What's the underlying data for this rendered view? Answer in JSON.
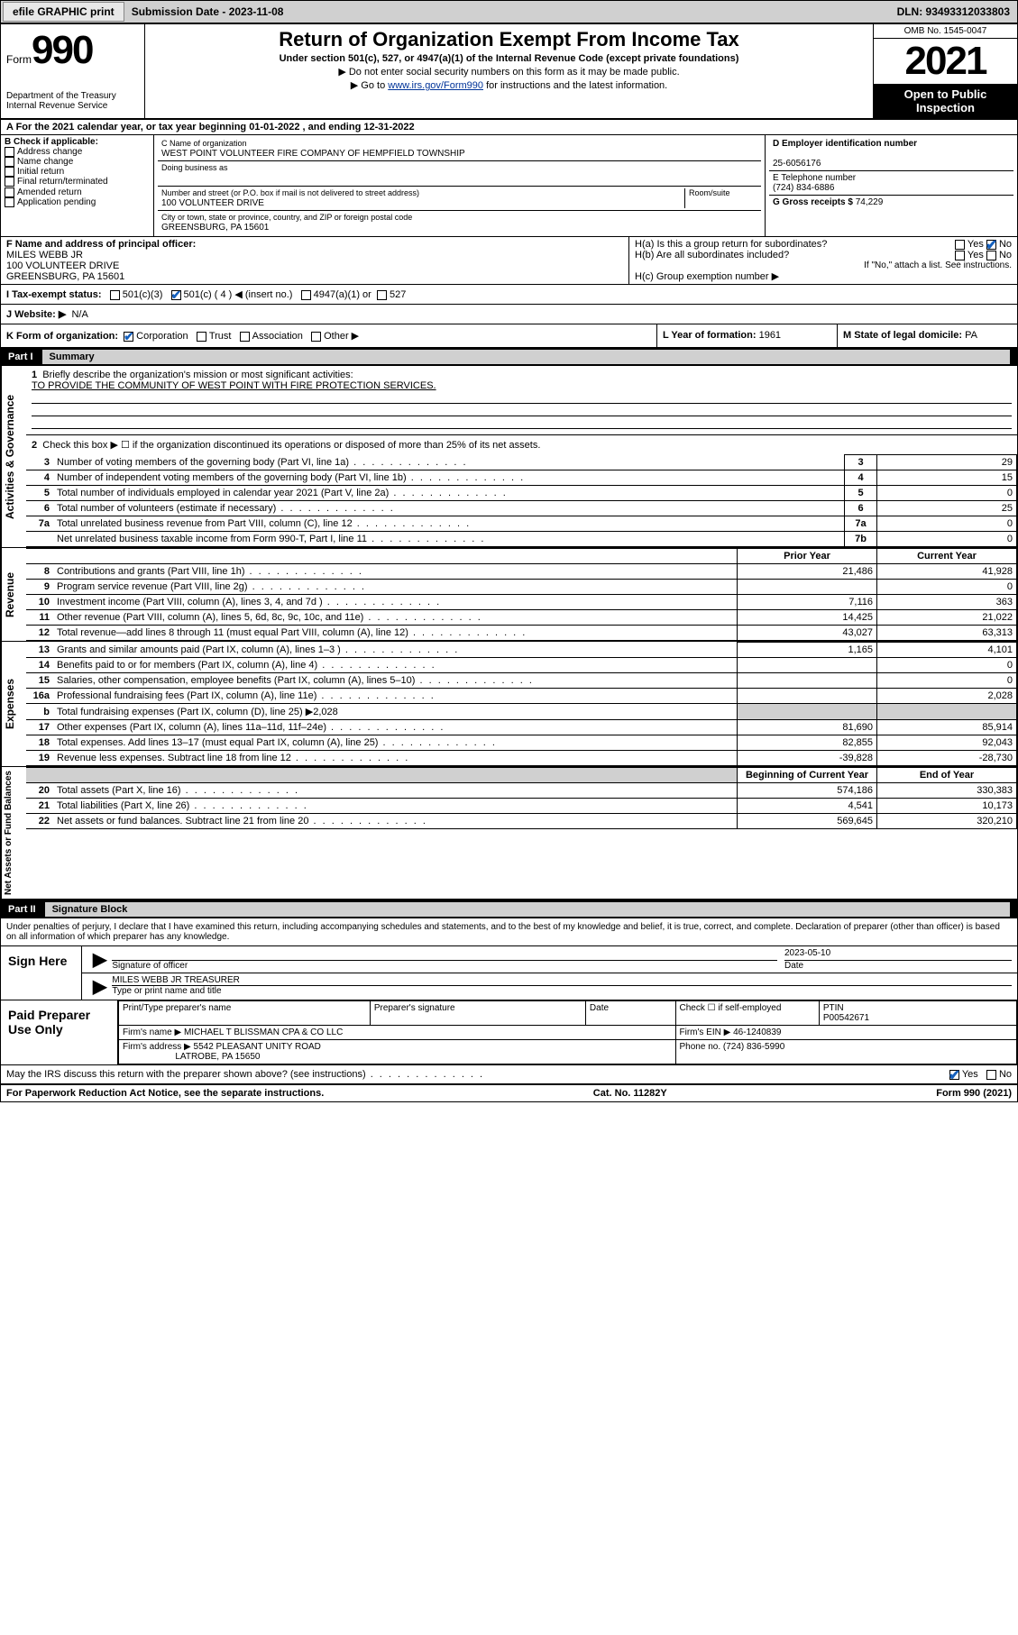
{
  "topbar": {
    "efile_label": "efile GRAPHIC print",
    "submission_label": "Submission Date - 2023-11-08",
    "dln_label": "DLN: 93493312033803"
  },
  "header": {
    "form_word": "Form",
    "form_num": "990",
    "dept": "Department of the Treasury\nInternal Revenue Service",
    "title": "Return of Organization Exempt From Income Tax",
    "sub1": "Under section 501(c), 527, or 4947(a)(1) of the Internal Revenue Code (except private foundations)",
    "sub2": "▶ Do not enter social security numbers on this form as it may be made public.",
    "sub3_pre": "▶ Go to ",
    "sub3_link": "www.irs.gov/Form990",
    "sub3_post": " for instructions and the latest information.",
    "omb": "OMB No. 1545-0047",
    "year": "2021",
    "open": "Open to Public Inspection"
  },
  "rowA": "A For the 2021 calendar year, or tax year beginning 01-01-2022   , and ending 12-31-2022",
  "boxB": {
    "title": "B Check if applicable:",
    "items": [
      "Address change",
      "Name change",
      "Initial return",
      "Final return/terminated",
      "Amended return",
      "Application pending"
    ]
  },
  "boxC": {
    "name_lbl": "C Name of organization",
    "name": "WEST POINT VOLUNTEER FIRE COMPANY OF HEMPFIELD TOWNSHIP",
    "dba_lbl": "Doing business as",
    "addr_lbl": "Number and street (or P.O. box if mail is not delivered to street address)",
    "room_lbl": "Room/suite",
    "addr": "100 VOLUNTEER DRIVE",
    "city_lbl": "City or town, state or province, country, and ZIP or foreign postal code",
    "city": "GREENSBURG, PA  15601"
  },
  "boxD": {
    "lbl": "D Employer identification number",
    "val": "25-6056176"
  },
  "boxE": {
    "lbl": "E Telephone number",
    "val": "(724) 834-6886"
  },
  "boxG": {
    "lbl": "G Gross receipts $",
    "val": "74,229"
  },
  "boxF": {
    "lbl": "F Name and address of principal officer:",
    "name": "MILES WEBB JR",
    "addr1": "100 VOLUNTEER DRIVE",
    "addr2": "GREENSBURG, PA  15601"
  },
  "boxH": {
    "a": "H(a)  Is this a group return for subordinates?",
    "b": "H(b)  Are all subordinates included?",
    "b_note": "If \"No,\" attach a list. See instructions.",
    "c": "H(c)  Group exemption number ▶",
    "yes": "Yes",
    "no": "No"
  },
  "rowI": {
    "lbl": "I   Tax-exempt status:",
    "o1": "501(c)(3)",
    "o2": "501(c) ( 4 ) ◀ (insert no.)",
    "o3": "4947(a)(1) or",
    "o4": "527"
  },
  "rowJ": {
    "lbl": "J   Website: ▶",
    "val": "N/A"
  },
  "rowK": {
    "lbl": "K Form of organization:",
    "o1": "Corporation",
    "o2": "Trust",
    "o3": "Association",
    "o4": "Other ▶"
  },
  "rowL": {
    "lbl": "L Year of formation:",
    "val": "1961"
  },
  "rowM": {
    "lbl": "M State of legal domicile:",
    "val": "PA"
  },
  "part1": {
    "name": "Part I",
    "title": "Summary",
    "side_gov": "Activities & Governance",
    "side_rev": "Revenue",
    "side_exp": "Expenses",
    "side_net": "Net Assets or Fund Balances",
    "l1_lbl": "Briefly describe the organization's mission or most significant activities:",
    "l1_val": "TO PROVIDE THE COMMUNITY OF WEST POINT WITH FIRE PROTECTION SERVICES.",
    "l2": "Check this box ▶ ☐  if the organization discontinued its operations or disposed of more than 25% of its net assets.",
    "rows_gov": [
      {
        "n": "3",
        "t": "Number of voting members of the governing body (Part VI, line 1a)",
        "box": "3",
        "v": "29"
      },
      {
        "n": "4",
        "t": "Number of independent voting members of the governing body (Part VI, line 1b)",
        "box": "4",
        "v": "15"
      },
      {
        "n": "5",
        "t": "Total number of individuals employed in calendar year 2021 (Part V, line 2a)",
        "box": "5",
        "v": "0"
      },
      {
        "n": "6",
        "t": "Total number of volunteers (estimate if necessary)",
        "box": "6",
        "v": "25"
      },
      {
        "n": "7a",
        "t": "Total unrelated business revenue from Part VIII, column (C), line 12",
        "box": "7a",
        "v": "0"
      },
      {
        "n": "",
        "t": "Net unrelated business taxable income from Form 990-T, Part I, line 11",
        "box": "7b",
        "v": "0"
      }
    ],
    "col_prior": "Prior Year",
    "col_curr": "Current Year",
    "rows_rev": [
      {
        "n": "8",
        "t": "Contributions and grants (Part VIII, line 1h)",
        "p": "21,486",
        "c": "41,928"
      },
      {
        "n": "9",
        "t": "Program service revenue (Part VIII, line 2g)",
        "p": "",
        "c": "0"
      },
      {
        "n": "10",
        "t": "Investment income (Part VIII, column (A), lines 3, 4, and 7d )",
        "p": "7,116",
        "c": "363"
      },
      {
        "n": "11",
        "t": "Other revenue (Part VIII, column (A), lines 5, 6d, 8c, 9c, 10c, and 11e)",
        "p": "14,425",
        "c": "21,022"
      },
      {
        "n": "12",
        "t": "Total revenue—add lines 8 through 11 (must equal Part VIII, column (A), line 12)",
        "p": "43,027",
        "c": "63,313"
      }
    ],
    "rows_exp": [
      {
        "n": "13",
        "t": "Grants and similar amounts paid (Part IX, column (A), lines 1–3 )",
        "p": "1,165",
        "c": "4,101"
      },
      {
        "n": "14",
        "t": "Benefits paid to or for members (Part IX, column (A), line 4)",
        "p": "",
        "c": "0"
      },
      {
        "n": "15",
        "t": "Salaries, other compensation, employee benefits (Part IX, column (A), lines 5–10)",
        "p": "",
        "c": "0"
      },
      {
        "n": "16a",
        "t": "Professional fundraising fees (Part IX, column (A), line 11e)",
        "p": "",
        "c": "2,028"
      }
    ],
    "l16b": "Total fundraising expenses (Part IX, column (D), line 25) ▶2,028",
    "rows_exp2": [
      {
        "n": "17",
        "t": "Other expenses (Part IX, column (A), lines 11a–11d, 11f–24e)",
        "p": "81,690",
        "c": "85,914"
      },
      {
        "n": "18",
        "t": "Total expenses. Add lines 13–17 (must equal Part IX, column (A), line 25)",
        "p": "82,855",
        "c": "92,043"
      },
      {
        "n": "19",
        "t": "Revenue less expenses. Subtract line 18 from line 12",
        "p": "-39,828",
        "c": "-28,730"
      }
    ],
    "col_beg": "Beginning of Current Year",
    "col_end": "End of Year",
    "rows_net": [
      {
        "n": "20",
        "t": "Total assets (Part X, line 16)",
        "p": "574,186",
        "c": "330,383"
      },
      {
        "n": "21",
        "t": "Total liabilities (Part X, line 26)",
        "p": "4,541",
        "c": "10,173"
      },
      {
        "n": "22",
        "t": "Net assets or fund balances. Subtract line 21 from line 20",
        "p": "569,645",
        "c": "320,210"
      }
    ]
  },
  "part2": {
    "name": "Part II",
    "title": "Signature Block",
    "decl": "Under penalties of perjury, I declare that I have examined this return, including accompanying schedules and statements, and to the best of my knowledge and belief, it is true, correct, and complete. Declaration of preparer (other than officer) is based on all information of which preparer has any knowledge.",
    "sign_here": "Sign Here",
    "sig_officer_lbl": "Signature of officer",
    "date_lbl": "Date",
    "sig_date": "2023-05-10",
    "name_title": "MILES WEBB JR  TREASURER",
    "name_title_lbl": "Type or print name and title",
    "paid": "Paid Preparer Use Only",
    "pp_name_lbl": "Print/Type preparer's name",
    "pp_sig_lbl": "Preparer's signature",
    "pp_date_lbl": "Date",
    "pp_check_lbl": "Check ☐ if self-employed",
    "ptin_lbl": "PTIN",
    "ptin": "P00542671",
    "firm_name_lbl": "Firm's name   ▶",
    "firm_name": "MICHAEL T BLISSMAN CPA & CO LLC",
    "firm_ein_lbl": "Firm's EIN ▶",
    "firm_ein": "46-1240839",
    "firm_addr_lbl": "Firm's address ▶",
    "firm_addr1": "5542 PLEASANT UNITY ROAD",
    "firm_addr2": "LATROBE, PA  15650",
    "phone_lbl": "Phone no.",
    "phone": "(724) 836-5990",
    "discuss": "May the IRS discuss this return with the preparer shown above? (see instructions)",
    "yes": "Yes",
    "no": "No"
  },
  "footer": {
    "left": "For Paperwork Reduction Act Notice, see the separate instructions.",
    "mid": "Cat. No. 11282Y",
    "right": "Form 990 (2021)"
  }
}
